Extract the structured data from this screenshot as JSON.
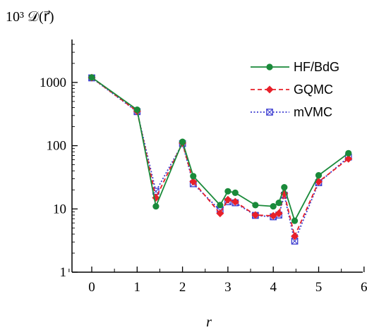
{
  "chart_data": {
    "type": "line",
    "ylabel": "10³ 𝒟(r⃗)",
    "xlabel": "r",
    "x_ticks": [
      "0",
      "1",
      "2",
      "3",
      "4",
      "5",
      "6"
    ],
    "y_ticks": [
      "1",
      "10",
      "100",
      "1000"
    ],
    "xlim": [
      -0.45,
      6.0
    ],
    "ylim": [
      1,
      5000
    ],
    "y_scale": "log",
    "grid": false,
    "legend_position": "top-right",
    "x": [
      0,
      1,
      1.414,
      2,
      2.236,
      2.828,
      3,
      3.162,
      3.606,
      4,
      4.123,
      4.243,
      4.472,
      5,
      5.657
    ],
    "series": [
      {
        "name": "HF/BdG",
        "color": "#1a8a3a",
        "marker": "filled-circle",
        "line": "solid",
        "values": [
          1200,
          370,
          11,
          115,
          33,
          11.5,
          19,
          18,
          11.5,
          11,
          12.5,
          22,
          6.5,
          34,
          76
        ]
      },
      {
        "name": "GQMC",
        "color": "#e8202a",
        "marker": "filled-diamond",
        "line": "dashed",
        "values": [
          1190,
          350,
          15,
          110,
          27,
          8.5,
          14,
          13,
          8,
          7.8,
          8.5,
          17.5,
          3.7,
          27,
          62
        ]
      },
      {
        "name": "mVMC",
        "color": "#3b3bd0",
        "marker": "crossed-square",
        "line": "dotted",
        "values": [
          1180,
          345,
          19,
          108,
          25,
          9.5,
          13,
          12.5,
          7.9,
          7.5,
          8,
          16.5,
          3.1,
          26,
          66
        ]
      }
    ]
  }
}
